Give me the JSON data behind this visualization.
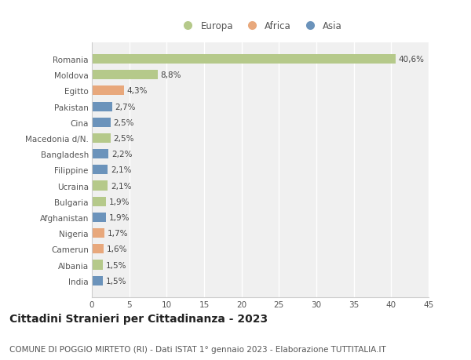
{
  "countries": [
    "Romania",
    "Moldova",
    "Egitto",
    "Pakistan",
    "Cina",
    "Macedonia d/N.",
    "Bangladesh",
    "Filippine",
    "Ucraina",
    "Bulgaria",
    "Afghanistan",
    "Nigeria",
    "Camerun",
    "Albania",
    "India"
  ],
  "values": [
    40.6,
    8.8,
    4.3,
    2.7,
    2.5,
    2.5,
    2.2,
    2.1,
    2.1,
    1.9,
    1.9,
    1.7,
    1.6,
    1.5,
    1.5
  ],
  "labels": [
    "40,6%",
    "8,8%",
    "4,3%",
    "2,7%",
    "2,5%",
    "2,5%",
    "2,2%",
    "2,1%",
    "2,1%",
    "1,9%",
    "1,9%",
    "1,7%",
    "1,6%",
    "1,5%",
    "1,5%"
  ],
  "colors": [
    "#b5c98a",
    "#b5c98a",
    "#e8a87c",
    "#6b93bb",
    "#6b93bb",
    "#b5c98a",
    "#6b93bb",
    "#6b93bb",
    "#b5c98a",
    "#b5c98a",
    "#6b93bb",
    "#e8a87c",
    "#e8a87c",
    "#b5c98a",
    "#6b93bb"
  ],
  "legend_colors": {
    "Europa": "#b5c98a",
    "Africa": "#e8a87c",
    "Asia": "#6b93bb"
  },
  "xlim": [
    0,
    45
  ],
  "xticks": [
    0,
    5,
    10,
    15,
    20,
    25,
    30,
    35,
    40,
    45
  ],
  "title": "Cittadini Stranieri per Cittadinanza - 2023",
  "subtitle": "COMUNE DI POGGIO MIRTETO (RI) - Dati ISTAT 1° gennaio 2023 - Elaborazione TUTTITALIA.IT",
  "background_color": "#ffffff",
  "plot_bg_color": "#f0f0f0",
  "grid_color": "#ffffff",
  "bar_height": 0.6,
  "label_fontsize": 7.5,
  "tick_fontsize": 7.5,
  "title_fontsize": 10,
  "subtitle_fontsize": 7.5,
  "legend_fontsize": 8.5
}
